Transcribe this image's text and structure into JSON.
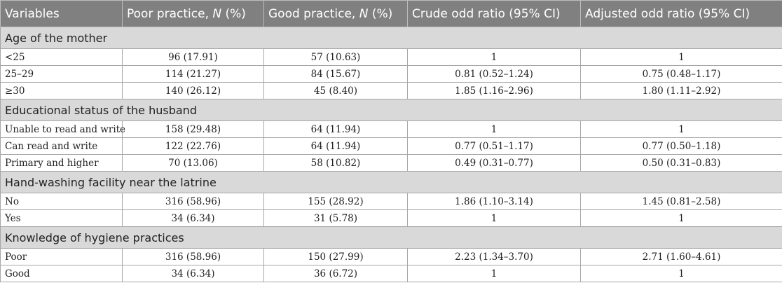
{
  "headers": {
    "variables": "Variables",
    "poor_prefix": "Poor practice, ",
    "good_prefix": "Good practice, ",
    "n": "N",
    "pct": " (%)",
    "crude": "Crude odd ratio (95% CI)",
    "adjusted": "Adjusted odd ratio (95% CI)"
  },
  "sections": [
    {
      "title": "Age of the mother",
      "rows": [
        {
          "label": "<25",
          "poor": "96 (17.91)",
          "good": "57 (10.63)",
          "crude": "1",
          "adjusted": "1"
        },
        {
          "label": "25–29",
          "poor": "114 (21.27)",
          "good": "84 (15.67)",
          "crude": "0.81 (0.52–1.24)",
          "adjusted": "0.75 (0.48–1.17)"
        },
        {
          "label": "≥30",
          "poor": "140 (26.12)",
          "good": "45 (8.40)",
          "crude": "1.85 (1.16–2.96)",
          "adjusted": "1.80 (1.11–2.92)"
        }
      ]
    },
    {
      "title": "Educational status of the husband",
      "rows": [
        {
          "label": "Unable to read and write",
          "poor": "158 (29.48)",
          "good": "64 (11.94)",
          "crude": "1",
          "adjusted": "1"
        },
        {
          "label": "Can read and write",
          "poor": "122 (22.76)",
          "good": "64 (11.94)",
          "crude": "0.77 (0.51–1.17)",
          "adjusted": "0.77 (0.50–1.18)"
        },
        {
          "label": "Primary and higher",
          "poor": "70 (13.06)",
          "good": "58 (10.82)",
          "crude": "0.49 (0.31–0.77)",
          "adjusted": "0.50 (0.31–0.83)"
        }
      ]
    },
    {
      "title": "Hand-washing facility near the latrine",
      "rows": [
        {
          "label": "No",
          "poor": "316 (58.96)",
          "good": "155 (28.92)",
          "crude": "1.86 (1.10–3.14)",
          "adjusted": "1.45 (0.81–2.58)"
        },
        {
          "label": "Yes",
          "poor": "34 (6.34)",
          "good": "31 (5.78)",
          "crude": "1",
          "adjusted": "1"
        }
      ]
    },
    {
      "title": "Knowledge of hygiene practices",
      "rows": [
        {
          "label": "Poor",
          "poor": "316 (58.96)",
          "good": "150 (27.99)",
          "crude": "2.23 (1.34–3.70)",
          "adjusted": "2.71 (1.60–4.61)"
        },
        {
          "label": "Good",
          "poor": "34 (6.34)",
          "good": "36 (6.72)",
          "crude": "1",
          "adjusted": "1"
        }
      ]
    }
  ]
}
